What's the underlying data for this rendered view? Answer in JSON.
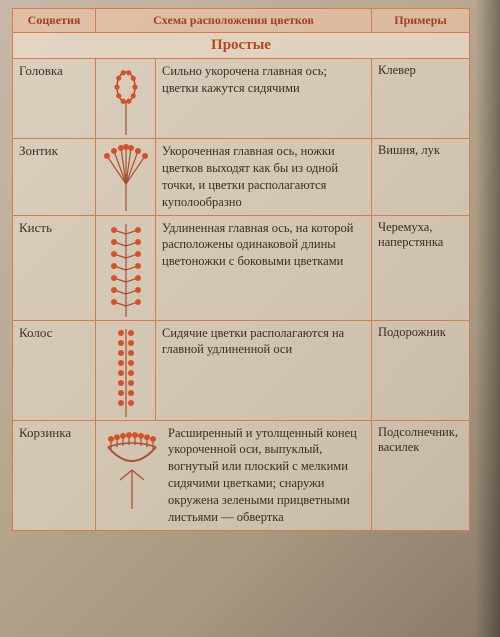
{
  "header": {
    "c1": "Соцветия",
    "c2": "Схема расположения цветков",
    "c3": "Примеры"
  },
  "section": {
    "title": "Простые"
  },
  "rows": [
    {
      "name": "Головка",
      "desc": "Сильно укорочена главная ось; цветки кажутся сидячими",
      "ex": "Клевер",
      "diagram": "golovka"
    },
    {
      "name": "Зонтик",
      "desc": "Укороченная главная ось, ножки цветков выходят как бы из одной точки, и цветки располагаются куполообразно",
      "ex": "Вишня, лук",
      "diagram": "zontik"
    },
    {
      "name": "Кисть",
      "desc": "Удлиненная главная ось, на которой расположены одинаковой длины цветоножки с боковыми цветками",
      "ex": "Черемуха, наперстянка",
      "diagram": "kist"
    },
    {
      "name": "Колос",
      "desc": "Сидячие цветки располагаются на главной удлиненной оси",
      "ex": "Подорожник",
      "diagram": "kolos"
    },
    {
      "name": "Корзинка",
      "desc": "Расширенный и утолщенный конец укороченной оси, выпуклый, вогнутый или плоский с мелкими сидячими цветками; снаружи окружена зелеными прицветными листьями — обвертка",
      "ex": "Подсолнечник, василек",
      "diagram": "korzinka"
    }
  ],
  "style": {
    "flower_color": "#d85028",
    "stem_color": "#a85030",
    "border_color": "#d87a4a"
  }
}
